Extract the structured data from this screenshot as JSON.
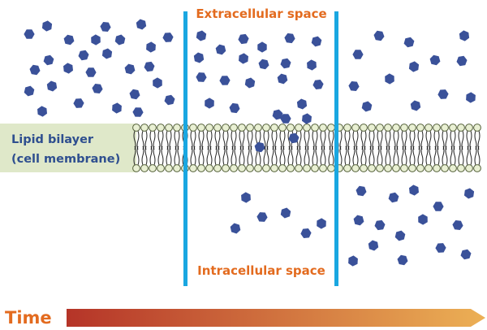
{
  "labels": {
    "extracellular": "Extracellular space",
    "intracellular": "Intracellular space",
    "bilayer_line1": "Lipid bilayer",
    "bilayer_line2": "(cell membrane)",
    "time": "Time"
  },
  "colors": {
    "molecule": "#3a5199",
    "divider": "#1aa7e1",
    "label_text_orange": "#e36b1f",
    "bilayer_text": "#2f4f8f",
    "bilayer_band": "#dfe8c9",
    "lipid_head_fill": "#e9f0d3",
    "lipid_head_stroke": "#55613b",
    "lipid_tail": "#222222",
    "time_arrow_start": "#b53428",
    "time_arrow_end": "#ecb055"
  },
  "icons": {
    "molecule": "hexagon-molecule-icon",
    "time_arrow": "gradient-arrow-icon"
  }
}
